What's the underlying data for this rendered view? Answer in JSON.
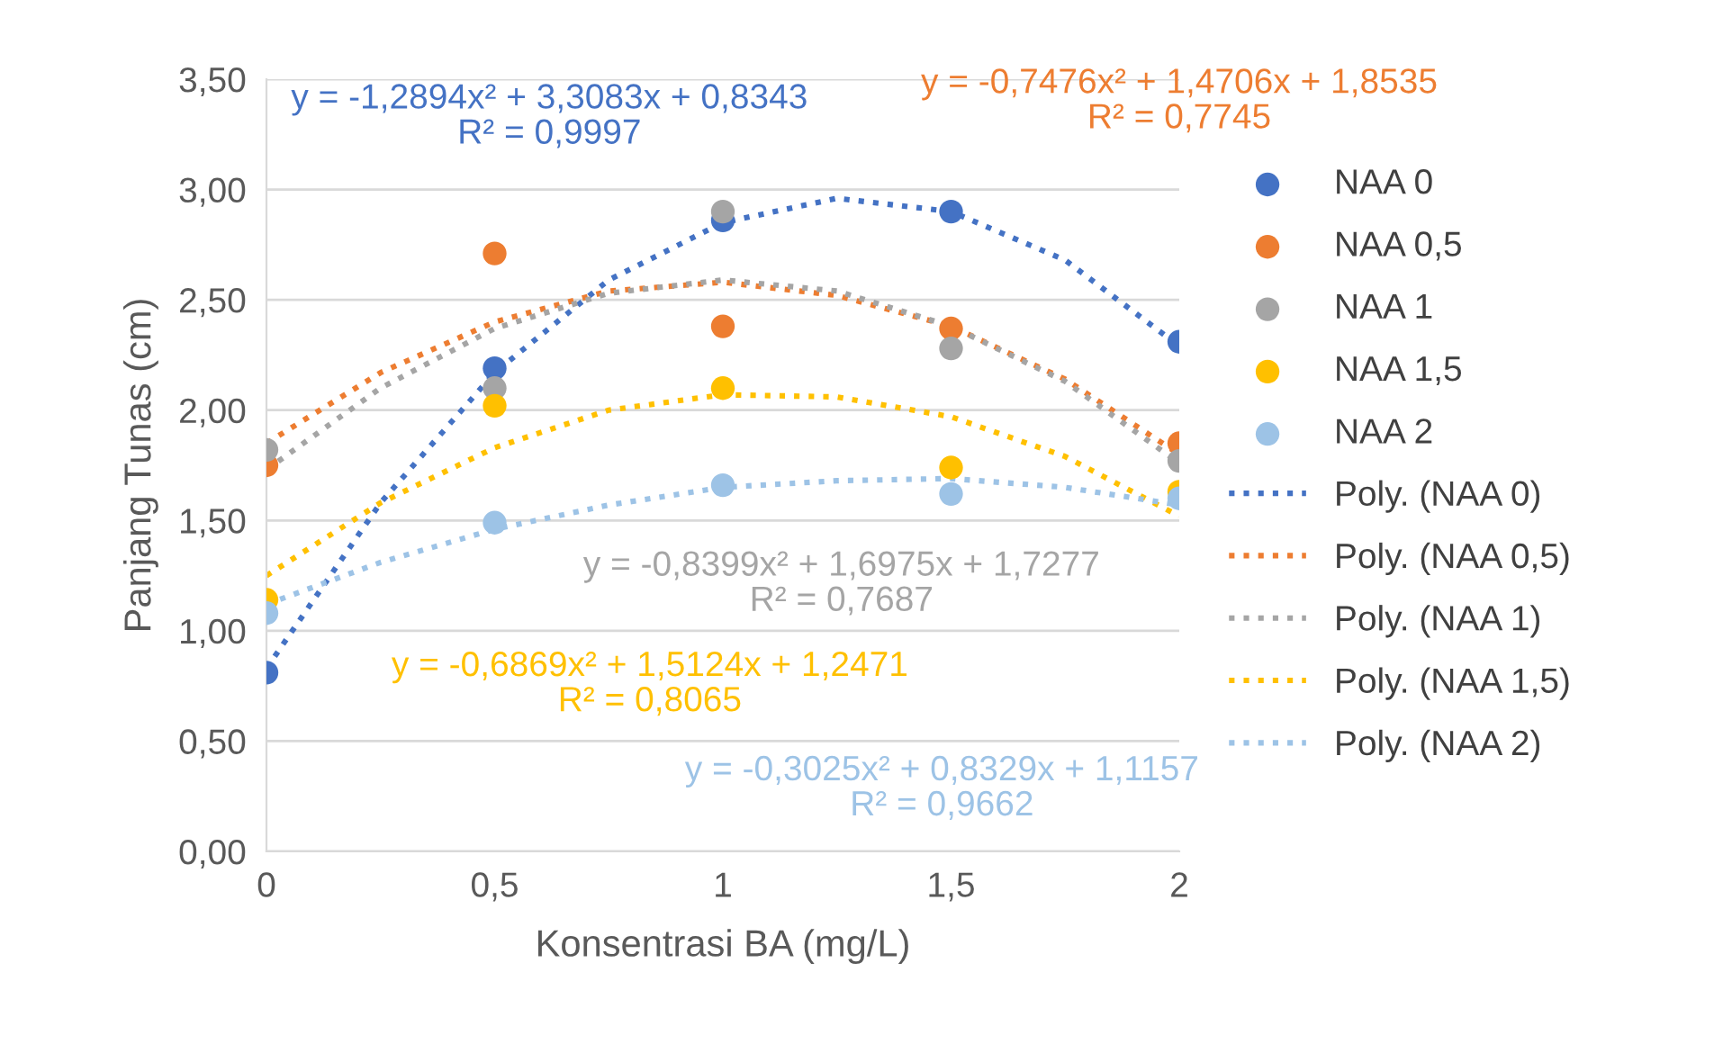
{
  "chart_data": {
    "type": "scatter",
    "xlabel": "Konsentrasi BA (mg/L)",
    "ylabel": "Panjang Tunas (cm)",
    "xlim": [
      0,
      2
    ],
    "xticks": [
      0,
      {
        "value": 0.5,
        "label": "0,5"
      },
      1,
      {
        "value": 1.5,
        "label": "1,5"
      },
      2
    ],
    "ylim": [
      0,
      3.5
    ],
    "yticks": [
      {
        "value": 0,
        "label": "0,00"
      },
      {
        "value": 0.5,
        "label": "0,50"
      },
      {
        "value": 1,
        "label": "1,00"
      },
      {
        "value": 1.5,
        "label": "1,50"
      },
      {
        "value": 2,
        "label": "2,00"
      },
      {
        "value": 2.5,
        "label": "2,50"
      },
      {
        "value": 3,
        "label": "3,00"
      },
      {
        "value": 3.5,
        "label": "3,50"
      }
    ],
    "grid": "y",
    "legend": "right",
    "marker": "circle",
    "series": [
      {
        "name": "NAA 0",
        "color": "#4472c4",
        "x": [
          0,
          0.5,
          1,
          1.5,
          2
        ],
        "values": [
          0.81,
          2.19,
          2.86,
          2.9,
          2.31
        ]
      },
      {
        "name": "NAA 0,5",
        "color": "#ed7d31",
        "x": [
          0,
          0.5,
          1,
          1.5,
          2
        ],
        "values": [
          1.75,
          2.71,
          2.38,
          2.37,
          1.85
        ]
      },
      {
        "name": "NAA 1",
        "color": "#a5a5a5",
        "x": [
          0,
          0.5,
          1,
          1.5,
          2
        ],
        "values": [
          1.82,
          2.1,
          2.9,
          2.28,
          1.77
        ]
      },
      {
        "name": "NAA 1,5",
        "color": "#ffc000",
        "x": [
          0,
          0.5,
          1,
          1.5,
          2
        ],
        "values": [
          1.14,
          2.02,
          2.1,
          1.74,
          1.63
        ]
      },
      {
        "name": "NAA 2",
        "color": "#9dc3e6",
        "x": [
          0,
          0.5,
          1,
          1.5,
          2
        ],
        "values": [
          1.08,
          1.49,
          1.66,
          1.62,
          1.6
        ]
      },
      {
        "name": "Poly. (NAA 0)",
        "type": "line",
        "line_style": "dotted",
        "marker": "none",
        "color": "#4472c4",
        "x": [
          0,
          0.25,
          0.5,
          0.75,
          1,
          1.25,
          1.5,
          1.75,
          2
        ],
        "values": [
          0.83,
          1.58,
          2.17,
          2.59,
          2.85,
          2.96,
          2.9,
          2.68,
          2.29
        ]
      },
      {
        "name": "Poly. (NAA 0,5)",
        "type": "line",
        "line_style": "dotted",
        "marker": "none",
        "color": "#ed7d31",
        "x": [
          0,
          0.25,
          0.5,
          0.75,
          1,
          1.25,
          1.5,
          1.75,
          2
        ],
        "values": [
          1.85,
          2.17,
          2.4,
          2.54,
          2.58,
          2.52,
          2.38,
          2.14,
          1.8
        ]
      },
      {
        "name": "Poly. (NAA 1)",
        "type": "line",
        "line_style": "dotted",
        "marker": "none",
        "color": "#a5a5a5",
        "x": [
          0,
          0.25,
          0.5,
          0.75,
          1,
          1.25,
          1.5,
          1.75,
          2
        ],
        "values": [
          1.73,
          2.1,
          2.37,
          2.53,
          2.59,
          2.54,
          2.38,
          2.13,
          1.76
        ]
      },
      {
        "name": "Poly. (NAA 1,5)",
        "type": "line",
        "line_style": "dotted",
        "marker": "none",
        "color": "#ffc000",
        "x": [
          0,
          0.25,
          0.5,
          0.75,
          1,
          1.25,
          1.5,
          1.75,
          2
        ],
        "values": [
          1.25,
          1.58,
          1.83,
          2,
          2.07,
          2.06,
          1.97,
          1.79,
          1.52
        ]
      },
      {
        "name": "Poly. (NAA 2)",
        "type": "line",
        "line_style": "dotted",
        "marker": "none",
        "color": "#9dc3e6",
        "x": [
          0,
          0.25,
          0.5,
          0.75,
          1,
          1.25,
          1.5,
          1.75,
          2
        ],
        "values": [
          1.12,
          1.31,
          1.46,
          1.57,
          1.65,
          1.68,
          1.69,
          1.65,
          1.57
        ]
      }
    ],
    "annotations": [
      "y = -1,2894x² + 3,3083x + 0,8343\nR² = 0,9997",
      "y = -0,7476x² + 1,4706x + 1,8535\nR² = 0,7745",
      "y = -0,8399x² + 1,6975x + 1,7277\nR² = 0,7687",
      "y = -0,6869x² + 1,5124x + 1,2471\nR² = 0,8065",
      "y = -0,3025x² + 0,8329x + 1,1157\nR² = 0,9662"
    ]
  }
}
